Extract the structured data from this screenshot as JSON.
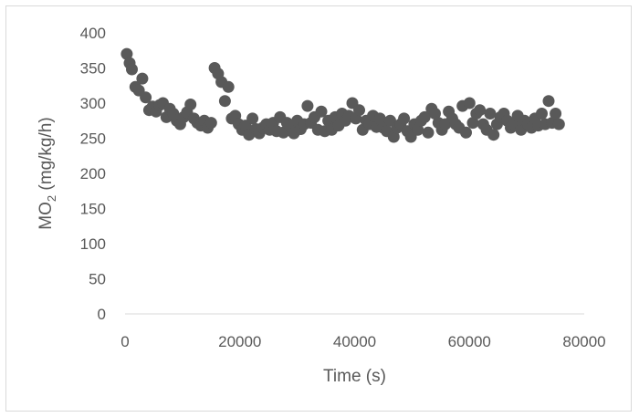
{
  "chart_data": {
    "type": "scatter",
    "title": "",
    "xlabel": "Time (s)",
    "ylabel": "MO",
    "ylabel_subscript": "2",
    "ylabel_suffix": " (mg/kg/h)",
    "xlim": [
      0,
      80000
    ],
    "ylim": [
      0,
      400
    ],
    "xticks": [
      0,
      20000,
      40000,
      60000,
      80000
    ],
    "yticks": [
      0,
      50,
      100,
      150,
      200,
      250,
      300,
      350,
      400
    ],
    "grid": false,
    "legend": "none",
    "series": [
      {
        "color": "#595959",
        "x": [
          300,
          800,
          1200,
          1800,
          2400,
          3000,
          3600,
          4200,
          4800,
          5400,
          6000,
          6600,
          7200,
          7800,
          8400,
          9000,
          9600,
          10200,
          10800,
          11400,
          12000,
          12600,
          13200,
          13800,
          14400,
          15000,
          15600,
          16200,
          16800,
          17400,
          18000,
          18600,
          19200,
          19800,
          20400,
          21000,
          21600,
          22200,
          22800,
          23400,
          24000,
          24600,
          25200,
          25800,
          26400,
          27000,
          27600,
          28200,
          28800,
          29400,
          30000,
          30600,
          31200,
          31800,
          32400,
          33000,
          33600,
          34200,
          34800,
          35400,
          36000,
          36600,
          37200,
          37800,
          38400,
          39000,
          39600,
          40200,
          40800,
          41400,
          42000,
          42600,
          43200,
          43800,
          44400,
          45000,
          45600,
          46200,
          46800,
          47400,
          48000,
          48600,
          49200,
          49800,
          50400,
          51000,
          51600,
          52200,
          52800,
          53400,
          54000,
          54600,
          55200,
          55800,
          56400,
          57000,
          57600,
          58200,
          58800,
          59400,
          60000,
          60600,
          61200,
          61800,
          62400,
          63000,
          63600,
          64200,
          64800,
          65400,
          66000,
          66600,
          67200,
          67800,
          68400,
          69000,
          69600,
          70200,
          70800,
          71400,
          72000,
          72600,
          73200,
          73800,
          74400,
          75000,
          75600
        ],
        "y": [
          370,
          357,
          348,
          323,
          318,
          335,
          308,
          290,
          295,
          288,
          297,
          300,
          280,
          292,
          285,
          275,
          270,
          280,
          287,
          298,
          278,
          272,
          268,
          275,
          265,
          272,
          350,
          342,
          330,
          303,
          323,
          278,
          282,
          270,
          262,
          268,
          255,
          278,
          263,
          257,
          265,
          270,
          262,
          272,
          260,
          280,
          258,
          272,
          266,
          257,
          275,
          263,
          270,
          296,
          272,
          280,
          262,
          288,
          260,
          275,
          262,
          280,
          268,
          285,
          275,
          282,
          300,
          278,
          290,
          262,
          275,
          270,
          282,
          266,
          278,
          265,
          260,
          275,
          252,
          265,
          270,
          278,
          260,
          252,
          270,
          262,
          275,
          280,
          258,
          292,
          285,
          272,
          262,
          270,
          288,
          278,
          270,
          265,
          296,
          258,
          300,
          272,
          285,
          290,
          270,
          262,
          285,
          255,
          270,
          280,
          285,
          275,
          265,
          270,
          282,
          262,
          275,
          270,
          265,
          278,
          268,
          285,
          270,
          303,
          272,
          285,
          270
        ]
      }
    ]
  }
}
